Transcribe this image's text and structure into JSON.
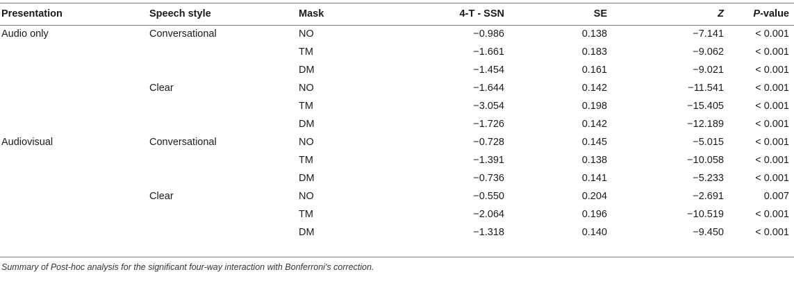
{
  "table": {
    "headers": {
      "presentation": "Presentation",
      "speech_style": "Speech style",
      "mask": "Mask",
      "diff": "4-T - SSN",
      "se": "SE",
      "z": "Z",
      "p_prefix": "P",
      "p_suffix": "-value"
    },
    "rows": [
      {
        "presentation": "Audio only",
        "speech_style": "Conversational",
        "mask": "NO",
        "diff": "−0.986",
        "se": "0.138",
        "z": "−7.141",
        "p": "< 0.001"
      },
      {
        "presentation": "",
        "speech_style": "",
        "mask": "TM",
        "diff": "−1.661",
        "se": "0.183",
        "z": "−9.062",
        "p": "< 0.001"
      },
      {
        "presentation": "",
        "speech_style": "",
        "mask": "DM",
        "diff": "−1.454",
        "se": "0.161",
        "z": "−9.021",
        "p": "< 0.001"
      },
      {
        "presentation": "",
        "speech_style": "Clear",
        "mask": "NO",
        "diff": "−1.644",
        "se": "0.142",
        "z": "−11.541",
        "p": "< 0.001"
      },
      {
        "presentation": "",
        "speech_style": "",
        "mask": "TM",
        "diff": "−3.054",
        "se": "0.198",
        "z": "−15.405",
        "p": "< 0.001"
      },
      {
        "presentation": "",
        "speech_style": "",
        "mask": "DM",
        "diff": "−1.726",
        "se": "0.142",
        "z": "−12.189",
        "p": "< 0.001"
      },
      {
        "presentation": "Audiovisual",
        "speech_style": "Conversational",
        "mask": "NO",
        "diff": "−0.728",
        "se": "0.145",
        "z": "−5.015",
        "p": "< 0.001"
      },
      {
        "presentation": "",
        "speech_style": "",
        "mask": "TM",
        "diff": "−1.391",
        "se": "0.138",
        "z": "−10.058",
        "p": "< 0.001"
      },
      {
        "presentation": "",
        "speech_style": "",
        "mask": "DM",
        "diff": "−0.736",
        "se": "0.141",
        "z": "−5.233",
        "p": "< 0.001"
      },
      {
        "presentation": "",
        "speech_style": "Clear",
        "mask": "NO",
        "diff": "−0.550",
        "se": "0.204",
        "z": "−2.691",
        "p": "0.007"
      },
      {
        "presentation": "",
        "speech_style": "",
        "mask": "TM",
        "diff": "−2.064",
        "se": "0.196",
        "z": "−10.519",
        "p": "< 0.001"
      },
      {
        "presentation": "",
        "speech_style": "",
        "mask": "DM",
        "diff": "−1.318",
        "se": "0.140",
        "z": "−9.450",
        "p": "< 0.001"
      }
    ]
  },
  "caption": "Summary of Post-hoc analysis for the significant four-way interaction with Bonferroni's correction."
}
